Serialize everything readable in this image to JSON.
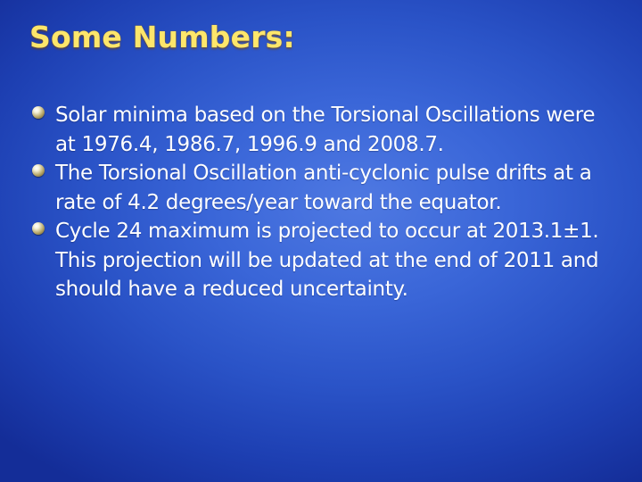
{
  "slide": {
    "title": "Some Numbers:",
    "bullets": [
      {
        "icon": "bullet-icon",
        "text": "Solar minima based on the Torsional Oscillations were at 1976.4, 1986.7, 1996.9 and 2008.7."
      },
      {
        "icon": "bullet-icon",
        "text": "The Torsional Oscillation anti-cyclonic pulse drifts at a rate of 4.2 degrees/year toward the equator."
      },
      {
        "icon": "bullet-icon",
        "text": "Cycle 24 maximum is projected to occur at 2013.1±1.  This projection will be updated at the end of 2011 and should have a reduced uncertainty."
      }
    ]
  },
  "colors": {
    "background": "#2a53c7",
    "title": "#fde66b",
    "text": "#ffffff"
  }
}
